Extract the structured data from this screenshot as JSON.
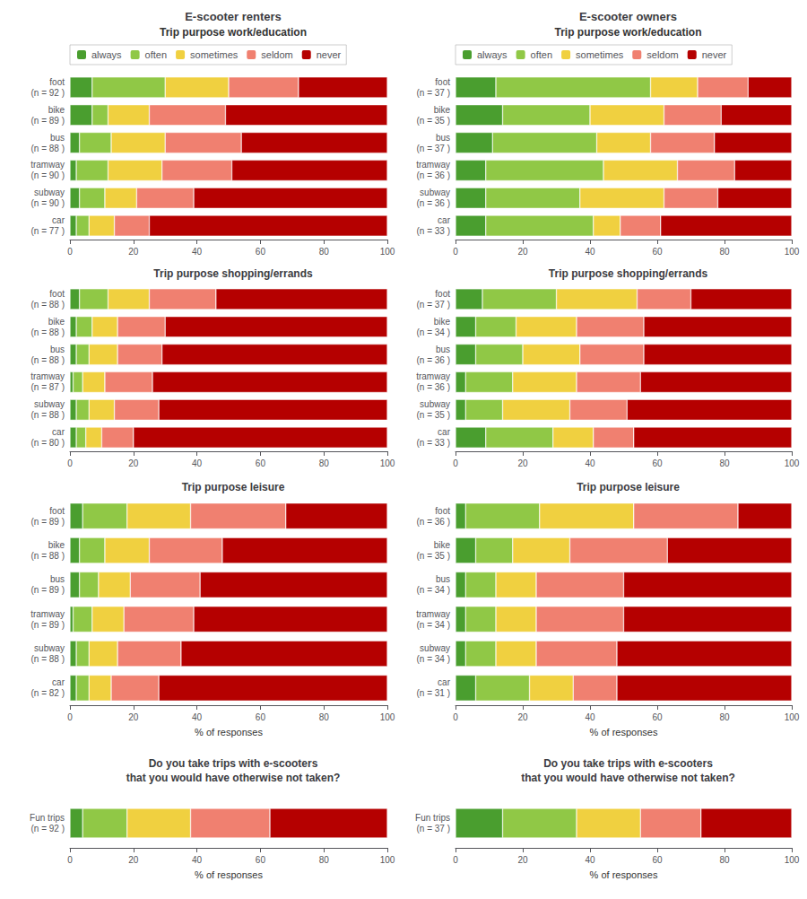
{
  "chart_data": [
    {
      "type": "bar",
      "title": "E-scooter renters",
      "subtitle": "Trip purpose work/education",
      "orientation": "horizontal",
      "stacked": true,
      "grid": false,
      "legend": "upper left",
      "categories": [
        "foot\n(n = 92 )",
        "bike\n(n = 89 )",
        "bus\n(n = 88 )",
        "tramway\n(n = 90 )",
        "subway\n(n = 90 )",
        "car\n(n = 77 )"
      ],
      "series": [
        {
          "name": "always",
          "color": "#4a9e2f",
          "values": [
            7,
            7,
            3,
            2,
            3,
            2
          ]
        },
        {
          "name": "often",
          "color": "#90c846",
          "values": [
            23,
            5,
            10,
            10,
            8,
            4
          ]
        },
        {
          "name": "sometimes",
          "color": "#f0d040",
          "values": [
            20,
            13,
            17,
            17,
            10,
            8
          ]
        },
        {
          "name": "seldom",
          "color": "#f08070",
          "values": [
            22,
            24,
            24,
            22,
            18,
            11
          ]
        },
        {
          "name": "never",
          "color": "#b50000",
          "values": [
            28,
            51,
            46,
            49,
            61,
            75
          ]
        }
      ],
      "xlim": [
        0,
        100
      ],
      "xticks": [
        0,
        20,
        40,
        60,
        80,
        100
      ]
    },
    {
      "type": "bar",
      "title": "E-scooter owners",
      "subtitle": "Trip purpose work/education",
      "orientation": "horizontal",
      "stacked": true,
      "grid": false,
      "legend": "upper left",
      "categories": [
        "foot\n(n = 37 )",
        "bike\n(n = 35 )",
        "bus\n(n = 37 )",
        "tramway\n(n = 36 )",
        "subway\n(n = 36 )",
        "car\n(n = 33 )"
      ],
      "series": [
        {
          "name": "always",
          "color": "#4a9e2f",
          "values": [
            12,
            14,
            11,
            9,
            9,
            9
          ]
        },
        {
          "name": "often",
          "color": "#90c846",
          "values": [
            46,
            26,
            31,
            35,
            28,
            32
          ]
        },
        {
          "name": "sometimes",
          "color": "#f0d040",
          "values": [
            14,
            22,
            16,
            22,
            25,
            8
          ]
        },
        {
          "name": "seldom",
          "color": "#f08070",
          "values": [
            15,
            17,
            19,
            17,
            16,
            12
          ]
        },
        {
          "name": "never",
          "color": "#b50000",
          "values": [
            13,
            21,
            23,
            17,
            22,
            39
          ]
        }
      ],
      "xlim": [
        0,
        100
      ],
      "xticks": [
        0,
        20,
        40,
        60,
        80,
        100
      ]
    },
    {
      "type": "bar",
      "title": "Trip purpose shopping/errands",
      "orientation": "horizontal",
      "stacked": true,
      "grid": false,
      "categories": [
        "foot\n(n = 88 )",
        "bike\n(n = 88 )",
        "bus\n(n = 88 )",
        "tramway\n(n = 87 )",
        "subway\n(n = 88 )",
        "car\n(n = 80 )"
      ],
      "series": [
        {
          "name": "always",
          "color": "#4a9e2f",
          "values": [
            3,
            2,
            2,
            1,
            2,
            2
          ]
        },
        {
          "name": "often",
          "color": "#90c846",
          "values": [
            9,
            5,
            4,
            3,
            4,
            3
          ]
        },
        {
          "name": "sometimes",
          "color": "#f0d040",
          "values": [
            13,
            8,
            9,
            7,
            8,
            5
          ]
        },
        {
          "name": "seldom",
          "color": "#f08070",
          "values": [
            21,
            15,
            14,
            15,
            14,
            10
          ]
        },
        {
          "name": "never",
          "color": "#b50000",
          "values": [
            54,
            70,
            71,
            74,
            72,
            80
          ]
        }
      ],
      "xlim": [
        0,
        100
      ],
      "xticks": [
        0,
        20,
        40,
        60,
        80,
        100
      ]
    },
    {
      "type": "bar",
      "title": "Trip purpose shopping/errands",
      "orientation": "horizontal",
      "stacked": true,
      "grid": false,
      "categories": [
        "foot\n(n = 37 )",
        "bike\n(n = 34 )",
        "bus\n(n = 36 )",
        "tramway\n(n = 36 )",
        "subway\n(n = 35 )",
        "car\n(n = 33 )"
      ],
      "series": [
        {
          "name": "always",
          "color": "#4a9e2f",
          "values": [
            8,
            6,
            6,
            3,
            3,
            9
          ]
        },
        {
          "name": "often",
          "color": "#90c846",
          "values": [
            22,
            12,
            14,
            14,
            11,
            20
          ]
        },
        {
          "name": "sometimes",
          "color": "#f0d040",
          "values": [
            24,
            18,
            17,
            19,
            20,
            12
          ]
        },
        {
          "name": "seldom",
          "color": "#f08070",
          "values": [
            16,
            20,
            19,
            19,
            17,
            12
          ]
        },
        {
          "name": "never",
          "color": "#b50000",
          "values": [
            30,
            44,
            44,
            45,
            49,
            47
          ]
        }
      ],
      "xlim": [
        0,
        100
      ],
      "xticks": [
        0,
        20,
        40,
        60,
        80,
        100
      ]
    },
    {
      "type": "bar",
      "title": "Trip purpose leisure",
      "xlabel": "% of responses",
      "orientation": "horizontal",
      "stacked": true,
      "grid": false,
      "categories": [
        "foot\n(n = 89 )",
        "bike\n(n = 88 )",
        "bus\n(n = 89 )",
        "tramway\n(n = 89 )",
        "subway\n(n = 88 )",
        "car\n(n = 82 )"
      ],
      "series": [
        {
          "name": "always",
          "color": "#4a9e2f",
          "values": [
            4,
            3,
            3,
            1,
            2,
            2
          ]
        },
        {
          "name": "often",
          "color": "#90c846",
          "values": [
            14,
            8,
            6,
            6,
            4,
            4
          ]
        },
        {
          "name": "sometimes",
          "color": "#f0d040",
          "values": [
            20,
            14,
            10,
            10,
            9,
            7
          ]
        },
        {
          "name": "seldom",
          "color": "#f08070",
          "values": [
            30,
            23,
            22,
            22,
            20,
            15
          ]
        },
        {
          "name": "never",
          "color": "#b50000",
          "values": [
            32,
            52,
            59,
            61,
            65,
            72
          ]
        }
      ],
      "xlim": [
        0,
        100
      ],
      "xticks": [
        0,
        20,
        40,
        60,
        80,
        100
      ]
    },
    {
      "type": "bar",
      "title": "Trip purpose leisure",
      "xlabel": "% of responses",
      "orientation": "horizontal",
      "stacked": true,
      "grid": false,
      "categories": [
        "foot\n(n = 36 )",
        "bike\n(n = 35 )",
        "bus\n(n = 34 )",
        "tramway\n(n = 34 )",
        "subway\n(n = 34 )",
        "car\n(n = 31 )"
      ],
      "series": [
        {
          "name": "always",
          "color": "#4a9e2f",
          "values": [
            3,
            6,
            3,
            3,
            3,
            6
          ]
        },
        {
          "name": "often",
          "color": "#90c846",
          "values": [
            22,
            11,
            9,
            9,
            9,
            16
          ]
        },
        {
          "name": "sometimes",
          "color": "#f0d040",
          "values": [
            28,
            17,
            12,
            12,
            12,
            13
          ]
        },
        {
          "name": "seldom",
          "color": "#f08070",
          "values": [
            31,
            29,
            26,
            26,
            24,
            13
          ]
        },
        {
          "name": "never",
          "color": "#b50000",
          "values": [
            16,
            37,
            50,
            50,
            52,
            52
          ]
        }
      ],
      "xlim": [
        0,
        100
      ],
      "xticks": [
        0,
        20,
        40,
        60,
        80,
        100
      ]
    },
    {
      "type": "bar",
      "title": "Do you take trips with e-scooters\nthat you would have otherwise not taken?",
      "xlabel": "% of responses",
      "orientation": "horizontal",
      "stacked": true,
      "grid": false,
      "categories": [
        "Fun trips\n(n = 92 )"
      ],
      "series": [
        {
          "name": "always",
          "color": "#4a9e2f",
          "values": [
            4
          ]
        },
        {
          "name": "often",
          "color": "#90c846",
          "values": [
            14
          ]
        },
        {
          "name": "sometimes",
          "color": "#f0d040",
          "values": [
            20
          ]
        },
        {
          "name": "seldom",
          "color": "#f08070",
          "values": [
            25
          ]
        },
        {
          "name": "never",
          "color": "#b50000",
          "values": [
            37
          ]
        }
      ],
      "xlim": [
        0,
        100
      ],
      "xticks": [
        0,
        20,
        40,
        60,
        80,
        100
      ]
    },
    {
      "type": "bar",
      "title": "Do you take trips with e-scooters\nthat you would have otherwise not taken?",
      "xlabel": "% of responses",
      "orientation": "horizontal",
      "stacked": true,
      "grid": false,
      "categories": [
        "Fun trips\n(n = 37 )"
      ],
      "series": [
        {
          "name": "always",
          "color": "#4a9e2f",
          "values": [
            14
          ]
        },
        {
          "name": "often",
          "color": "#90c846",
          "values": [
            22
          ]
        },
        {
          "name": "sometimes",
          "color": "#f0d040",
          "values": [
            19
          ]
        },
        {
          "name": "seldom",
          "color": "#f08070",
          "values": [
            18
          ]
        },
        {
          "name": "never",
          "color": "#b50000",
          "values": [
            27
          ]
        }
      ],
      "xlim": [
        0,
        100
      ],
      "xticks": [
        0,
        20,
        40,
        60,
        80,
        100
      ]
    }
  ]
}
